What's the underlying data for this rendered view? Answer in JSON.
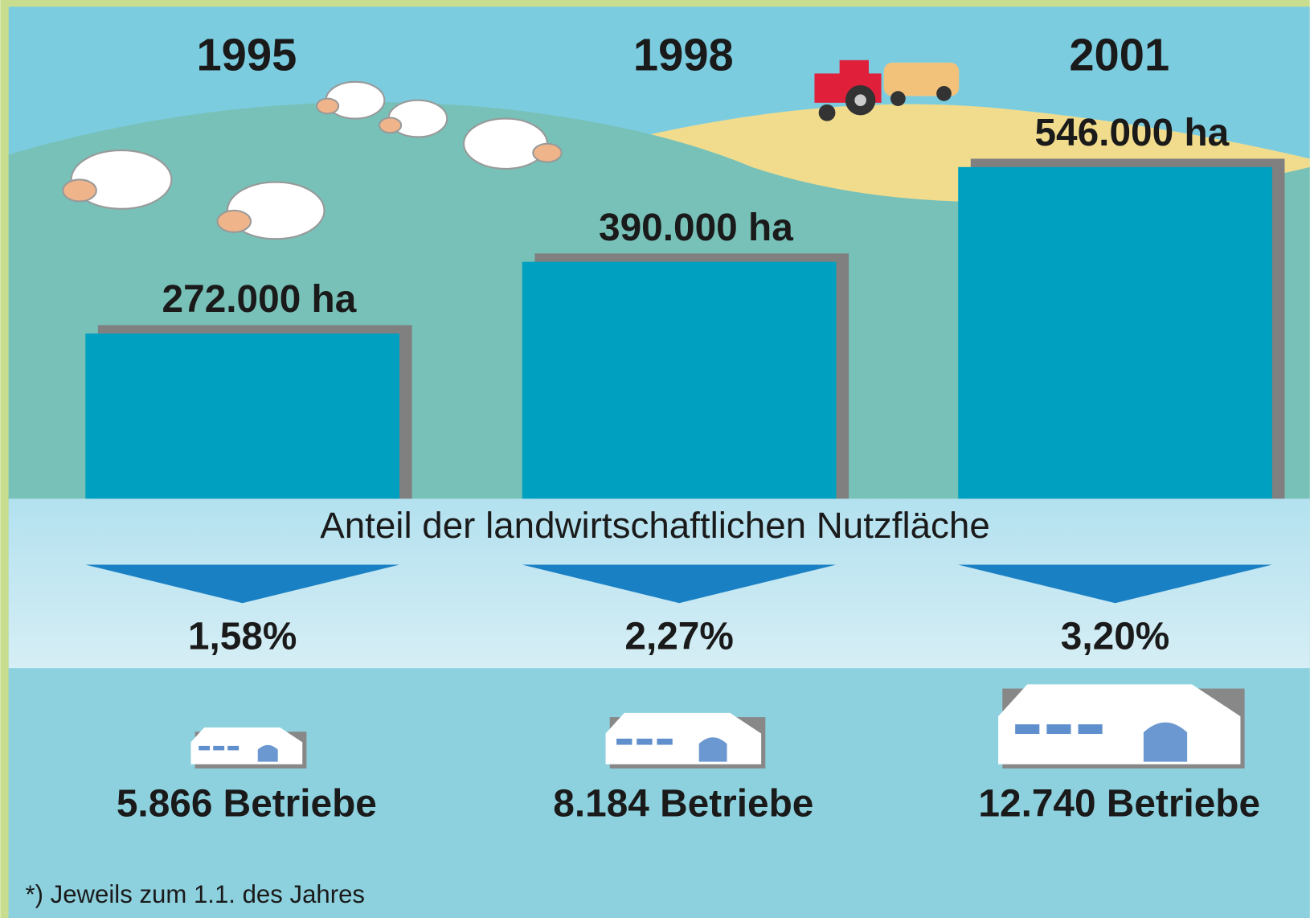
{
  "chart_data": {
    "type": "bar",
    "categories": [
      "1995",
      "1998",
      "2001"
    ],
    "values": [
      272000,
      390000,
      546000
    ],
    "value_labels": [
      "272.000 ha",
      "390.000 ha",
      "546.000 ha"
    ],
    "color": "#00a0c0",
    "subtitle": "Anteil der landwirtschaftlichen Nutzfläche",
    "shares": {
      "values": [
        1.58,
        2.27,
        3.2
      ],
      "value_labels": [
        "1,58%",
        "2,27%",
        "3,20%"
      ],
      "color": "#1a80c4"
    },
    "farms": {
      "values": [
        5866,
        8184,
        12740
      ],
      "value_labels": [
        "5.866 Betriebe",
        "8.184 Betriebe",
        "12.740 Betriebe"
      ]
    },
    "note": "*) Jeweils zum 1.1. des Jahres"
  }
}
